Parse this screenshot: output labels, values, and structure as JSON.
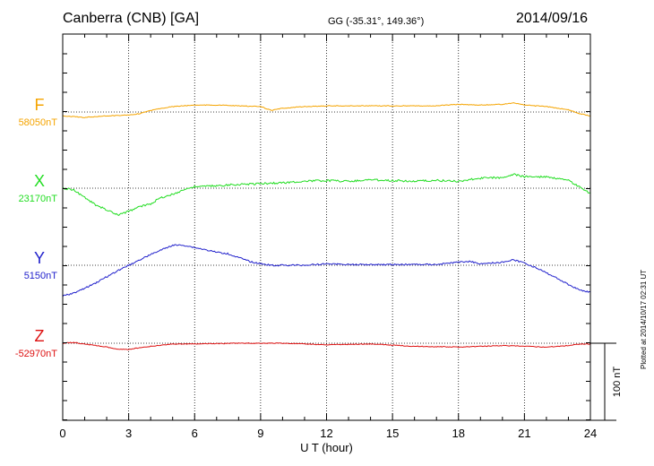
{
  "header": {
    "station": "Canberra (CNB)  [GA]",
    "coords": "GG (-35.31°, 149.36°)",
    "date": "2014/09/16"
  },
  "footer": {
    "plotted": "Plotted at 2014/10/17 02:31  UT"
  },
  "chart_data": {
    "type": "line",
    "xlabel": "U T (hour)",
    "xlim": [
      0,
      24
    ],
    "xticks": [
      "0",
      "3",
      "6",
      "9",
      "12",
      "15",
      "18",
      "21",
      "24"
    ],
    "scale_bar": {
      "label": "100 nT",
      "value_nT": 100
    },
    "grid": "dotted, every 3 hours",
    "series": [
      {
        "name": "F",
        "baseline_label": "58050nT",
        "baseline_nT": 58050,
        "color": "#f5a400",
        "x": [
          0,
          1,
          2,
          3,
          3.5,
          4,
          4.5,
          5,
          5.5,
          6,
          7,
          8,
          9,
          9.5,
          10,
          11,
          12,
          13,
          14,
          15,
          16,
          17,
          18,
          19,
          20,
          20.5,
          21,
          22,
          23,
          23.5,
          24
        ],
        "y": [
          58045,
          58043,
          58045,
          58046,
          58048,
          58052,
          58055,
          58057,
          58058,
          58059,
          58059,
          58058,
          58057,
          58052,
          58055,
          58057,
          58058,
          58058,
          58058,
          58058,
          58058,
          58058,
          58060,
          58059,
          58060,
          58062,
          58059,
          58057,
          58053,
          58048,
          58045
        ]
      },
      {
        "name": "X",
        "baseline_label": "23170nT",
        "baseline_nT": 23170,
        "color": "#22dd22",
        "x": [
          0,
          0.5,
          1,
          1.5,
          2,
          2.5,
          3,
          3.5,
          4,
          4.5,
          5,
          5.5,
          6,
          7,
          8,
          9,
          10,
          11,
          12,
          13,
          14,
          15,
          16,
          17,
          18,
          19,
          20,
          20.5,
          21,
          22,
          23,
          23.5,
          24
        ],
        "y": [
          23170,
          23168,
          23158,
          23148,
          23142,
          23135,
          23140,
          23146,
          23150,
          23158,
          23162,
          23168,
          23172,
          23173,
          23175,
          23176,
          23177,
          23179,
          23180,
          23179,
          23181,
          23180,
          23179,
          23180,
          23179,
          23183,
          23184,
          23188,
          23185,
          23185,
          23180,
          23172,
          23163
        ]
      },
      {
        "name": "Y",
        "baseline_label": "5150nT",
        "baseline_nT": 5150,
        "color": "#2222cc",
        "x": [
          0,
          0.5,
          1,
          1.5,
          2,
          2.5,
          3,
          3.5,
          4,
          4.5,
          5,
          5.5,
          6,
          6.5,
          7,
          7.5,
          8,
          8.5,
          9,
          9.5,
          10,
          11,
          12,
          13,
          14,
          15,
          16,
          17,
          18,
          18.5,
          19,
          20,
          20.5,
          21,
          21.5,
          22,
          22.5,
          23,
          23.5,
          24
        ],
        "y": [
          5110,
          5114,
          5120,
          5127,
          5135,
          5143,
          5150,
          5157,
          5164,
          5170,
          5176,
          5176,
          5173,
          5170,
          5167,
          5165,
          5160,
          5155,
          5152,
          5150,
          5150,
          5150,
          5152,
          5151,
          5151,
          5151,
          5151,
          5151,
          5154,
          5155,
          5152,
          5154,
          5157,
          5153,
          5147,
          5140,
          5133,
          5125,
          5118,
          5115
        ]
      },
      {
        "name": "Z",
        "baseline_label": "-52970nT",
        "baseline_nT": -52970,
        "color": "#dd1111",
        "x": [
          0,
          0.5,
          1,
          2,
          2.5,
          3,
          4,
          5,
          6,
          8,
          10,
          12,
          14,
          16,
          18,
          20,
          21,
          22,
          23,
          23.5,
          24
        ],
        "y": [
          -52970,
          -52969,
          -52971,
          -52975,
          -52978,
          -52978,
          -52974,
          -52971,
          -52971,
          -52970,
          -52970,
          -52972,
          -52971,
          -52974,
          -52975,
          -52973,
          -52974,
          -52975,
          -52973,
          -52971,
          -52971
        ]
      }
    ]
  }
}
